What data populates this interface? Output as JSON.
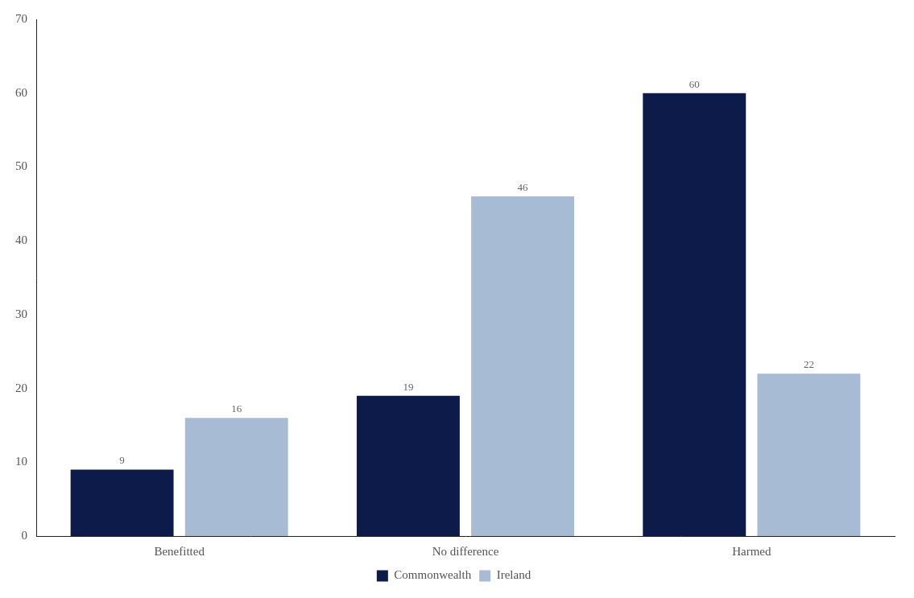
{
  "chart_data": {
    "type": "bar",
    "categories": [
      "Benefitted",
      "No difference",
      "Harmed"
    ],
    "series": [
      {
        "name": "Commonwealth",
        "color": "#0d1b4b",
        "values": [
          9,
          19,
          60
        ]
      },
      {
        "name": "Ireland",
        "color": "#a8bbd4",
        "values": [
          16,
          46,
          22
        ]
      }
    ],
    "ylim": [
      0,
      70
    ],
    "yticks": [
      0,
      10,
      20,
      30,
      40,
      50,
      60,
      70
    ],
    "grid": false,
    "legend": "bottom",
    "data_labels": true
  }
}
